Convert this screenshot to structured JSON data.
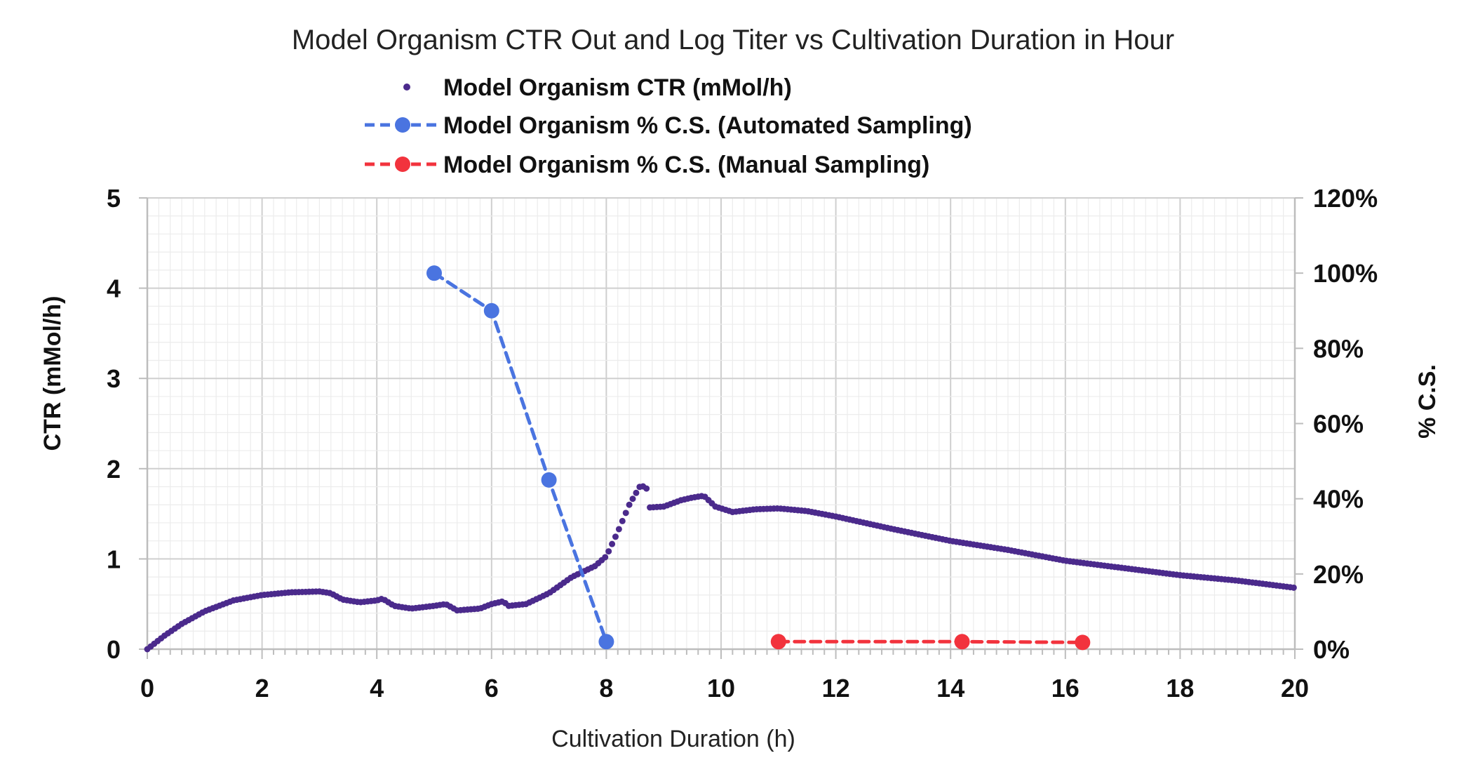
{
  "chart_data": {
    "type": "line",
    "title": "Model Organism CTR Out and Log Titer vs Cultivation Duration in Hour",
    "xlabel": "Cultivation Duration (h)",
    "ylabel_left": "CTR (mMol/h)",
    "ylabel_right": "% C.S.",
    "xlim": [
      0,
      20
    ],
    "ylim_left": [
      0,
      5
    ],
    "ylim_right": [
      0,
      120
    ],
    "x_ticks": [
      "0",
      "2",
      "4",
      "6",
      "8",
      "10",
      "12",
      "14",
      "16",
      "18",
      "20"
    ],
    "y_left_ticks": [
      "0",
      "1",
      "2",
      "3",
      "4",
      "5"
    ],
    "y_right_ticks": [
      "0%",
      "20%",
      "40%",
      "60%",
      "80%",
      "100%",
      "120%"
    ],
    "grid": true,
    "legend_position": "top-center",
    "series": [
      {
        "name": "Model Organism CTR (mMol/h)",
        "axis": "left",
        "style": "dots",
        "color": "#4b2a8c",
        "anchors": [
          [
            0,
            0.0
          ],
          [
            0.3,
            0.15
          ],
          [
            0.6,
            0.28
          ],
          [
            1.0,
            0.42
          ],
          [
            1.5,
            0.54
          ],
          [
            2.0,
            0.6
          ],
          [
            2.5,
            0.63
          ],
          [
            3.0,
            0.64
          ],
          [
            3.2,
            0.62
          ],
          [
            3.4,
            0.55
          ],
          [
            3.7,
            0.52
          ],
          [
            4.0,
            0.54
          ],
          [
            4.1,
            0.56
          ],
          [
            4.3,
            0.48
          ],
          [
            4.6,
            0.45
          ],
          [
            5.0,
            0.48
          ],
          [
            5.2,
            0.5
          ],
          [
            5.4,
            0.43
          ],
          [
            5.8,
            0.45
          ],
          [
            6.0,
            0.5
          ],
          [
            6.2,
            0.53
          ],
          [
            6.3,
            0.48
          ],
          [
            6.6,
            0.5
          ],
          [
            7.0,
            0.62
          ],
          [
            7.4,
            0.8
          ],
          [
            7.8,
            0.92
          ],
          [
            8.0,
            1.03
          ],
          [
            8.2,
            1.3
          ],
          [
            8.4,
            1.6
          ],
          [
            8.6,
            1.82
          ],
          [
            8.7,
            1.78
          ],
          [
            8.75,
            1.57
          ],
          [
            9.0,
            1.58
          ],
          [
            9.3,
            1.65
          ],
          [
            9.5,
            1.68
          ],
          [
            9.7,
            1.7
          ],
          [
            9.9,
            1.58
          ],
          [
            10.2,
            1.52
          ],
          [
            10.6,
            1.55
          ],
          [
            11.0,
            1.56
          ],
          [
            11.5,
            1.53
          ],
          [
            12.0,
            1.47
          ],
          [
            13.0,
            1.33
          ],
          [
            14.0,
            1.2
          ],
          [
            15.0,
            1.1
          ],
          [
            16.0,
            0.98
          ],
          [
            17.0,
            0.9
          ],
          [
            18.0,
            0.82
          ],
          [
            19.0,
            0.76
          ],
          [
            20.0,
            0.68
          ]
        ]
      },
      {
        "name": "Model Organism % C.S. (Automated Sampling)",
        "axis": "right",
        "style": "dashed-markers",
        "color": "#4a74e0",
        "points": [
          [
            5,
            100
          ],
          [
            6,
            90
          ],
          [
            7,
            45
          ],
          [
            8,
            2
          ]
        ]
      },
      {
        "name": "Model Organism % C.S. (Manual Sampling)",
        "axis": "right",
        "style": "dashed-markers",
        "color": "#f2333d",
        "points": [
          [
            11,
            2
          ],
          [
            14.2,
            2
          ],
          [
            16.3,
            1.8
          ]
        ]
      }
    ]
  }
}
